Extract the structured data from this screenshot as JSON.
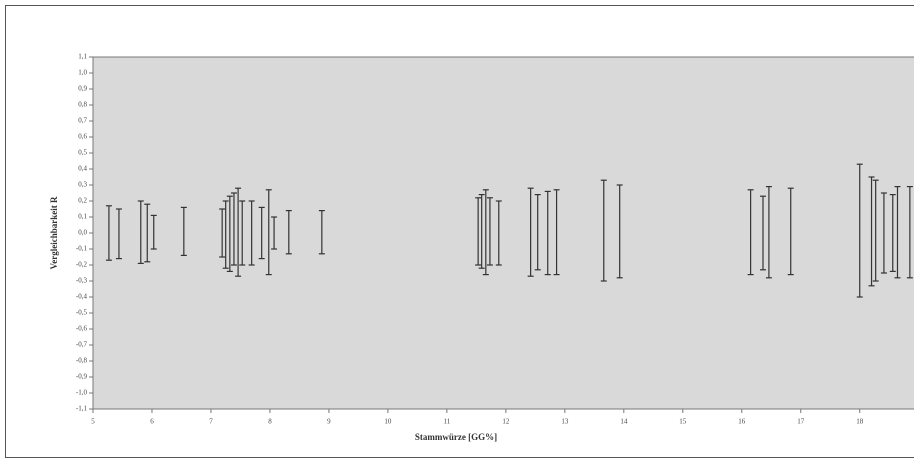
{
  "chart_data": {
    "type": "interval",
    "x_label": "Stammwürze [GG%]",
    "y_label": "Vergleichbarkeit R",
    "color": "#333333",
    "plot_color": "#d9d9d9",
    "xlim": [
      5,
      18.92
    ],
    "xticks": [
      5,
      6,
      7,
      8,
      9,
      10,
      11,
      12,
      13,
      14,
      15,
      16,
      17,
      18
    ],
    "ylim": [
      -1.1,
      1.1
    ],
    "yticks": [
      {
        "value": 1.1,
        "label": "1,1"
      },
      {
        "value": 1.0,
        "label": "1,0"
      },
      {
        "value": 0.9,
        "label": "0,9"
      },
      {
        "value": 0.8,
        "label": "0,8"
      },
      {
        "value": 0.7,
        "label": "0,7"
      },
      {
        "value": 0.6,
        "label": "0,6"
      },
      {
        "value": 0.5,
        "label": "0,5"
      },
      {
        "value": 0.4,
        "label": "0,4"
      },
      {
        "value": 0.3,
        "label": "0,3"
      },
      {
        "value": 0.2,
        "label": "0,2"
      },
      {
        "value": 0.1,
        "label": "0,1"
      },
      {
        "value": 0,
        "label": "0,0"
      },
      {
        "value": -0.1,
        "label": "-0,1"
      },
      {
        "value": -0.2,
        "label": "-0,2"
      },
      {
        "value": -0.3,
        "label": "-0,3"
      },
      {
        "value": -0.4,
        "label": "-0,4"
      },
      {
        "value": -0.5,
        "label": "-0,5"
      },
      {
        "value": -0.6,
        "label": "-0,6"
      },
      {
        "value": -0.7,
        "label": "-0,7"
      },
      {
        "value": -0.8,
        "label": "-0,8"
      },
      {
        "value": -0.9,
        "label": "-0,9"
      },
      {
        "value": -1.0,
        "label": "-1,0"
      },
      {
        "value": -1.1,
        "label": "-1,1"
      }
    ],
    "x": [
      5.27,
      5.44,
      5.81,
      5.92,
      6.03,
      6.54,
      7.19,
      7.25,
      7.32,
      7.39,
      7.46,
      7.53,
      7.69,
      7.86,
      7.98,
      8.07,
      8.32,
      8.88,
      11.53,
      11.59,
      11.66,
      11.73,
      11.88,
      12.42,
      12.54,
      12.71,
      12.86,
      13.66,
      13.93,
      16.15,
      16.36,
      16.46,
      16.83,
      18.0,
      18.2,
      18.27,
      18.41,
      18.56,
      18.64,
      18.85
    ],
    "high": [
      0.17,
      0.15,
      0.2,
      0.18,
      0.11,
      0.16,
      0.15,
      0.2,
      0.23,
      0.25,
      0.28,
      0.2,
      0.2,
      0.16,
      0.27,
      0.1,
      0.14,
      0.14,
      0.22,
      0.24,
      0.27,
      0.22,
      0.2,
      0.28,
      0.24,
      0.26,
      0.27,
      0.33,
      0.3,
      0.27,
      0.23,
      0.29,
      0.28,
      0.43,
      0.35,
      0.33,
      0.25,
      0.24,
      0.29,
      0.29
    ],
    "low": [
      -0.17,
      -0.16,
      -0.19,
      -0.18,
      -0.1,
      -0.14,
      -0.15,
      -0.22,
      -0.24,
      -0.2,
      -0.27,
      -0.2,
      -0.2,
      -0.16,
      -0.26,
      -0.1,
      -0.13,
      -0.13,
      -0.2,
      -0.22,
      -0.26,
      -0.2,
      -0.2,
      -0.27,
      -0.23,
      -0.26,
      -0.26,
      -0.3,
      -0.28,
      -0.26,
      -0.23,
      -0.28,
      -0.26,
      -0.4,
      -0.33,
      -0.3,
      -0.25,
      -0.24,
      -0.28,
      -0.28
    ]
  }
}
